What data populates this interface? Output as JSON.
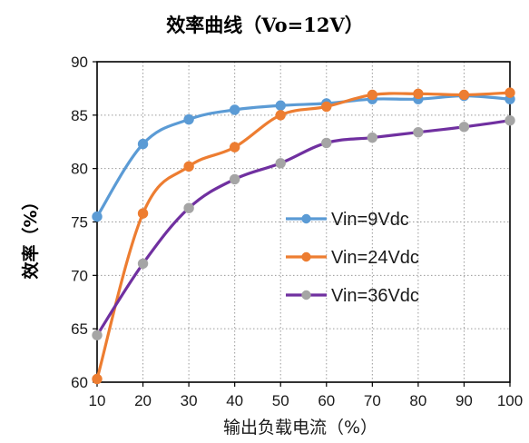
{
  "chart_data": {
    "type": "line",
    "title": "效率曲线（Vo=12V）",
    "xlabel": "输出负载电流（%）",
    "ylabel": "效率（%）",
    "x": [
      10,
      20,
      30,
      40,
      50,
      60,
      70,
      80,
      90,
      100
    ],
    "xlim": [
      10,
      100
    ],
    "ylim": [
      60,
      90
    ],
    "x_ticks": [
      "10",
      "20",
      "30",
      "40",
      "50",
      "60",
      "70",
      "80",
      "90",
      "100"
    ],
    "y_ticks": [
      "60",
      "65",
      "70",
      "75",
      "80",
      "85",
      "90"
    ],
    "grid": true,
    "legend_position": "center-right",
    "series": [
      {
        "name": "Vin=9Vdc",
        "color": "#5b9bd5",
        "values": [
          75.5,
          82.3,
          84.6,
          85.5,
          85.9,
          86.1,
          86.5,
          86.5,
          86.8,
          86.5
        ]
      },
      {
        "name": "Vin=24Vdc",
        "color": "#ed7d31",
        "values": [
          60.3,
          75.8,
          80.2,
          82.0,
          85.0,
          85.8,
          86.9,
          87.0,
          86.9,
          87.1
        ]
      },
      {
        "name": "Vin=36Vdc",
        "color": "#7030a0",
        "marker_color": "#a5a5a5",
        "values": [
          64.4,
          71.1,
          76.3,
          79.0,
          80.5,
          82.4,
          82.9,
          83.4,
          83.9,
          84.5
        ]
      }
    ]
  }
}
